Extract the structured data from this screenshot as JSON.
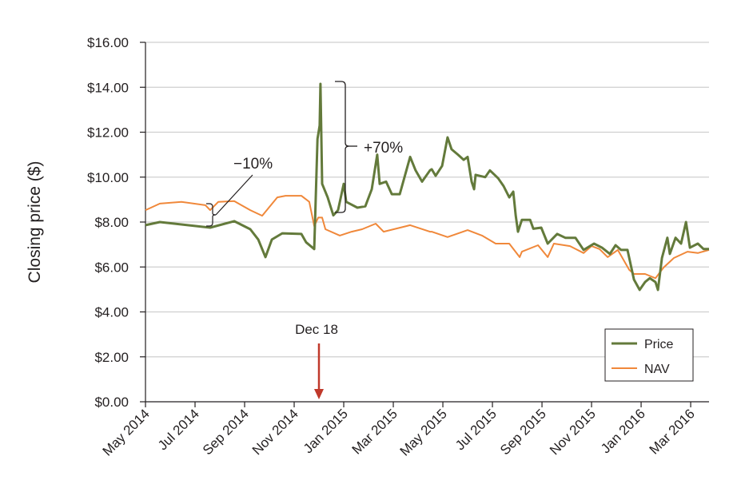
{
  "chart_data": {
    "type": "line",
    "title": "",
    "xlabel": "",
    "ylabel": "Closing price ($)",
    "x_unit": "months since May 2014",
    "xlim": [
      0,
      22.74
    ],
    "ylim": [
      0,
      16
    ],
    "grid": true,
    "y_ticks": [
      0,
      2,
      4,
      6,
      8,
      10,
      12,
      14,
      16
    ],
    "y_tick_labels": [
      "$0.00",
      "$2.00",
      "$4.00",
      "$6.00",
      "$8.00",
      "$10.00",
      "$12.00",
      "$14.00",
      "$16.00"
    ],
    "x_ticks": [
      0,
      2,
      4,
      6,
      8,
      10,
      12,
      14,
      16,
      18,
      20,
      22
    ],
    "x_tick_labels": [
      "May 2014",
      "Jul 2014",
      "Sep 2014",
      "Nov 2014",
      "Jan 2015",
      "Mar 2015",
      "May 2015",
      "Jul 2015",
      "Sep 2015",
      "Nov 2015",
      "Jan 2016",
      "Mar 2016"
    ],
    "legend_position": "bottom-right",
    "series": [
      {
        "name": "Price",
        "color": "#637a3b",
        "x": [
          0,
          0.58,
          2.61,
          3.58,
          4.23,
          4.55,
          4.84,
          5.1,
          5.52,
          6.29,
          6.48,
          6.81,
          6.94,
          7.03,
          7.06,
          7.13,
          7.35,
          7.58,
          7.77,
          8.0,
          8.1,
          8.55,
          8.87,
          9.13,
          9.35,
          9.45,
          9.71,
          9.94,
          10.26,
          10.68,
          10.9,
          11.16,
          11.48,
          11.55,
          11.71,
          11.97,
          12.19,
          12.35,
          12.61,
          12.84,
          13.0,
          13.16,
          13.26,
          13.32,
          13.71,
          13.9,
          14.23,
          14.45,
          14.68,
          14.84,
          14.94,
          15.03,
          15.19,
          15.52,
          15.65,
          15.97,
          16.23,
          16.61,
          16.94,
          17.35,
          17.68,
          18.1,
          18.42,
          18.74,
          18.97,
          19.19,
          19.45,
          19.71,
          19.94,
          20.16,
          20.35,
          20.58,
          20.68,
          20.84,
          21.06,
          21.16,
          21.39,
          21.61,
          21.81,
          21.97,
          22.29,
          22.52,
          22.74
        ],
        "y": [
          7.86,
          8.0,
          7.75,
          8.04,
          7.68,
          7.22,
          6.44,
          7.22,
          7.5,
          7.47,
          7.1,
          6.8,
          11.7,
          12.3,
          14.15,
          9.7,
          9.1,
          8.3,
          8.53,
          9.7,
          8.9,
          8.64,
          8.7,
          9.46,
          11.0,
          9.7,
          9.8,
          9.24,
          9.24,
          10.9,
          10.3,
          9.8,
          10.3,
          10.35,
          10.06,
          10.5,
          11.77,
          11.24,
          11.0,
          10.77,
          10.9,
          9.8,
          9.46,
          10.1,
          10.0,
          10.3,
          9.95,
          9.6,
          9.1,
          9.35,
          8.28,
          7.57,
          8.1,
          8.1,
          7.7,
          7.75,
          7.04,
          7.47,
          7.3,
          7.3,
          6.76,
          7.04,
          6.86,
          6.58,
          6.97,
          6.76,
          6.76,
          5.44,
          4.98,
          5.33,
          5.5,
          5.33,
          4.98,
          6.4,
          7.3,
          6.58,
          7.3,
          7.04,
          8.0,
          6.86,
          7.04,
          6.8,
          6.8
        ]
      },
      {
        "name": "NAV",
        "color": "#f0883a",
        "x": [
          0,
          0.58,
          1.45,
          2.42,
          2.61,
          2.94,
          3.58,
          4.23,
          4.71,
          5.32,
          5.65,
          6.29,
          6.61,
          6.81,
          6.97,
          7.13,
          7.26,
          7.84,
          8.32,
          8.74,
          9.29,
          9.61,
          10.68,
          11.48,
          11.55,
          12.19,
          13.0,
          13.58,
          14.13,
          14.68,
          15.1,
          15.19,
          15.84,
          16.23,
          16.48,
          17.13,
          17.68,
          18.0,
          18.32,
          18.65,
          19.06,
          19.52,
          19.71,
          20.16,
          20.58,
          20.9,
          21.32,
          21.87,
          22.29,
          22.74
        ],
        "y": [
          8.53,
          8.82,
          8.9,
          8.75,
          8.53,
          8.9,
          8.93,
          8.53,
          8.28,
          9.1,
          9.17,
          9.17,
          8.9,
          7.82,
          8.2,
          8.2,
          7.68,
          7.4,
          7.57,
          7.68,
          7.93,
          7.57,
          7.86,
          7.57,
          7.57,
          7.33,
          7.64,
          7.4,
          7.04,
          7.04,
          6.44,
          6.68,
          6.97,
          6.44,
          7.04,
          6.93,
          6.62,
          6.93,
          6.8,
          6.44,
          6.76,
          5.87,
          5.69,
          5.69,
          5.5,
          5.97,
          6.4,
          6.68,
          6.62,
          6.76
        ]
      }
    ],
    "annotations": {
      "discount_label": "−10%",
      "premium_label": "+70%",
      "event_label": "Dec 18",
      "event_color": "#c0392b"
    }
  }
}
